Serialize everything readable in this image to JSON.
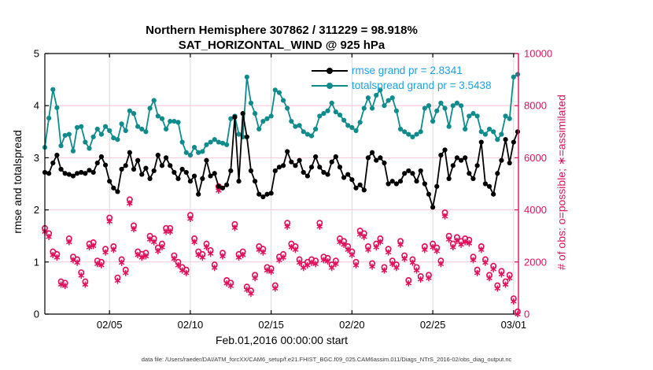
{
  "title": {
    "line1": "Northern Hemisphere 307862 / 311229 = 98.918%",
    "line2": "SAT_HORIZONTAL_WIND @ 925 hPa"
  },
  "legend": [
    {
      "label": "rmse grand pr = 2.8341",
      "color": "#000000"
    },
    {
      "label": "totalspread grand pr = 3.5438",
      "color": "#0f8b8b"
    }
  ],
  "legend_text_color": "#1da1e3",
  "axes": {
    "left": {
      "label": "rmse and totalspread",
      "ticks": [
        "0",
        "1",
        "2",
        "3",
        "4",
        "5"
      ],
      "tick_values": [
        0,
        1,
        2,
        3,
        4,
        5
      ],
      "range": [
        0,
        5
      ],
      "color": "#000000"
    },
    "right": {
      "label": "# of obs: o=possible; ∗=assimilated",
      "ticks": [
        "0",
        "2000",
        "4000",
        "6000",
        "8000",
        "10000"
      ],
      "tick_values": [
        0,
        2000,
        4000,
        6000,
        8000,
        10000
      ],
      "range": [
        0,
        10000
      ],
      "color": "#e2115c"
    },
    "x": {
      "label": "Feb.01,2016 00:00:00 start",
      "ticks": [
        "02/05",
        "02/10",
        "02/15",
        "02/20",
        "02/25",
        "03/01"
      ],
      "tick_days": [
        5,
        10,
        15,
        20,
        25,
        30
      ],
      "range_days": [
        1,
        30.3
      ]
    }
  },
  "caption": "data file: /Users/raeder/DAI/ATM_forcXX/CAM6_setup/f.e21.FHIST_BGC.f09_025.CAM6assim.011/Diags_NTrS_2016-02/obs_diag_output.nc",
  "colors": {
    "rmse": "#000000",
    "totalspread": "#0f8b8b",
    "obs": "#e2115c",
    "grid_vertical": "#d9d9d9",
    "grid_horizontal": "#f6c6d8",
    "background": "#ffffff"
  },
  "chart_data": {
    "type": "line",
    "title": "Northern Hemisphere 307862 / 311229 = 98.918%",
    "subtitle": "SAT_HORIZONTAL_WIND @ 925 hPa",
    "xlabel": "Feb.01,2016 00:00:00 start",
    "ylabel_left": "rmse and totalspread",
    "ylabel_right": "# of obs: o=possible; ∗=assimilated",
    "xlim_days": [
      1,
      30.3
    ],
    "ylim_left": [
      0,
      5
    ],
    "ylim_right": [
      0,
      10000
    ],
    "grid": true,
    "legend_position": "top-center-inside",
    "x": {
      "start_day": 1,
      "step_days": 0.25,
      "count": 118,
      "note": "day 1 = Feb 01 2016 00:00Z, 6-hourly bins through Mar 01"
    },
    "series": [
      {
        "name": "rmse",
        "axis": "left",
        "color": "#000000",
        "marker": "filled-circle",
        "values": [
          2.72,
          2.7,
          2.9,
          3.05,
          2.78,
          2.7,
          2.68,
          2.65,
          2.7,
          2.72,
          2.7,
          2.76,
          2.72,
          2.9,
          3.02,
          2.86,
          2.55,
          2.42,
          2.35,
          2.78,
          2.85,
          3.1,
          2.78,
          2.95,
          2.68,
          2.8,
          2.6,
          2.75,
          3.05,
          2.85,
          3.0,
          2.85,
          2.72,
          2.6,
          2.78,
          2.72,
          2.55,
          2.65,
          2.3,
          2.6,
          2.95,
          2.65,
          2.7,
          2.45,
          2.42,
          2.48,
          2.75,
          3.78,
          2.55,
          3.85,
          3.4,
          2.75,
          2.55,
          2.3,
          2.25,
          2.3,
          2.32,
          2.75,
          2.82,
          2.85,
          3.12,
          2.92,
          2.85,
          2.95,
          2.72,
          2.65,
          2.82,
          3.02,
          2.82,
          2.72,
          2.68,
          2.92,
          3.02,
          2.82,
          2.62,
          2.68,
          2.58,
          2.42,
          2.48,
          2.38,
          3.0,
          3.1,
          2.95,
          3.0,
          2.9,
          2.5,
          2.55,
          2.5,
          2.55,
          2.7,
          2.75,
          2.7,
          2.55,
          2.75,
          2.5,
          2.3,
          2.05,
          2.45,
          3.05,
          3.15,
          2.6,
          2.85,
          3.0,
          2.95,
          3.0,
          2.7,
          2.6,
          2.85,
          3.3,
          2.5,
          2.45,
          2.3,
          2.7,
          2.95,
          3.35,
          2.9,
          3.3,
          3.5
        ]
      },
      {
        "name": "totalspread",
        "axis": "left",
        "color": "#0f8b8b",
        "marker": "filled-circle",
        "values": [
          3.2,
          3.76,
          4.31,
          3.96,
          3.23,
          3.43,
          3.45,
          3.13,
          3.58,
          3.6,
          3.3,
          3.18,
          3.4,
          3.55,
          3.45,
          3.6,
          3.52,
          3.38,
          3.35,
          3.65,
          3.52,
          3.9,
          3.85,
          3.6,
          3.55,
          3.5,
          3.95,
          4.1,
          3.8,
          3.75,
          3.55,
          3.7,
          3.7,
          3.68,
          3.3,
          3.1,
          3.05,
          3.2,
          3.1,
          3.12,
          3.25,
          3.3,
          3.35,
          3.3,
          3.28,
          3.25,
          3.75,
          3.8,
          3.45,
          3.4,
          4.55,
          4.05,
          3.85,
          3.55,
          3.7,
          3.75,
          3.8,
          4.3,
          4.25,
          4.1,
          3.95,
          3.7,
          3.6,
          3.62,
          3.5,
          3.45,
          3.42,
          3.55,
          3.8,
          3.85,
          3.9,
          4.05,
          3.88,
          3.82,
          3.72,
          3.62,
          3.58,
          3.52,
          3.68,
          3.95,
          4.15,
          3.95,
          4.2,
          4.3,
          4.0,
          4.1,
          4.15,
          3.9,
          3.55,
          3.5,
          3.45,
          3.4,
          3.45,
          3.5,
          3.95,
          4.0,
          3.7,
          3.9,
          4.05,
          3.95,
          3.6,
          4.0,
          4.05,
          4.0,
          3.55,
          3.8,
          3.85,
          3.8,
          3.5,
          3.45,
          3.55,
          3.5,
          3.35,
          3.45,
          3.8,
          3.75,
          4.55,
          4.6
        ]
      },
      {
        "name": "observations possible",
        "axis": "right",
        "color": "#e2115c",
        "marker": "o",
        "values": [
          3300,
          3100,
          2400,
          2300,
          1250,
          1200,
          2900,
          2200,
          2100,
          1600,
          1250,
          2700,
          2750,
          2050,
          2000,
          2500,
          3700,
          2600,
          1400,
          2100,
          1700,
          4400,
          3400,
          2400,
          2300,
          2350,
          3000,
          2900,
          2550,
          2700,
          3300,
          3300,
          2250,
          2000,
          1800,
          1700,
          3800,
          2900,
          2400,
          2300,
          2700,
          2450,
          1900,
          4900,
          2350,
          1300,
          1200,
          3450,
          2300,
          2400,
          1050,
          900,
          1500,
          2600,
          2500,
          1800,
          1750,
          1100,
          2200,
          2300,
          3500,
          2700,
          2600,
          2100,
          1900,
          2000,
          2100,
          2050,
          3500,
          2200,
          2150,
          1900,
          2050,
          2900,
          2800,
          2600,
          2400,
          2000,
          3200,
          3100,
          2600,
          1950,
          2700,
          2900,
          1800,
          2500,
          2050,
          1900,
          2800,
          2250,
          1300,
          2100,
          1800,
          1450,
          2600,
          1500,
          2700,
          2550,
          2050,
          3900,
          3000,
          2700,
          2950,
          2800,
          2900,
          2850,
          2200,
          1700,
          2600,
          2100,
          1500,
          1850,
          1100,
          1650,
          1250,
          1500,
          600,
          100
        ]
      },
      {
        "name": "observations assimilated",
        "axis": "right",
        "color": "#e2115c",
        "marker": "asterisk",
        "fraction_of_possible": 0.98918,
        "note": "drawn just below each o marker; overall ratio 307862/311229 = 98.918%"
      }
    ]
  }
}
